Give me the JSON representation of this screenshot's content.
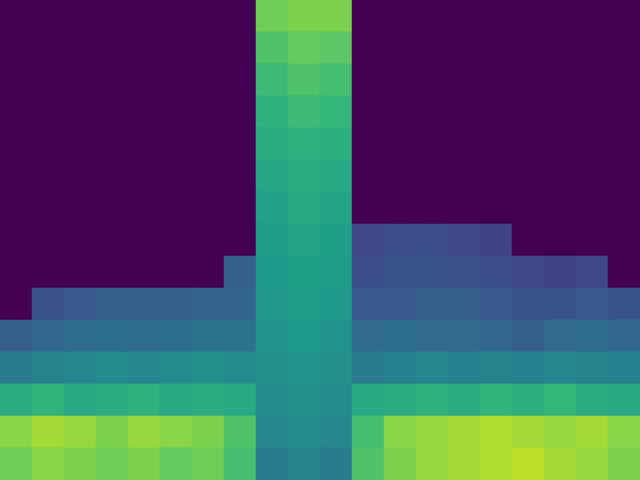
{
  "chart_data": {
    "type": "heatmap",
    "tick_labels": false,
    "color_range": [
      0,
      1
    ],
    "cells": [
      [
        0,
        0,
        0,
        0,
        0,
        0,
        0,
        0,
        0.78,
        0.8,
        0.8,
        0,
        0,
        0,
        0,
        0,
        0,
        0,
        0,
        0
      ],
      [
        0,
        0,
        0,
        0,
        0,
        0,
        0,
        0,
        0.72,
        0.76,
        0.74,
        0,
        0,
        0,
        0,
        0,
        0,
        0,
        0,
        0
      ],
      [
        0,
        0,
        0,
        0,
        0,
        0,
        0,
        0,
        0.68,
        0.72,
        0.7,
        0,
        0,
        0,
        0,
        0,
        0,
        0,
        0,
        0
      ],
      [
        0,
        0,
        0,
        0,
        0,
        0,
        0,
        0,
        0.64,
        0.68,
        0.66,
        0,
        0,
        0,
        0,
        0,
        0,
        0,
        0,
        0
      ],
      [
        0,
        0,
        0,
        0,
        0,
        0,
        0,
        0,
        0.61,
        0.64,
        0.63,
        0,
        0,
        0,
        0,
        0,
        0,
        0,
        0,
        0
      ],
      [
        0,
        0,
        0,
        0,
        0,
        0,
        0,
        0,
        0.59,
        0.62,
        0.6,
        0,
        0,
        0,
        0,
        0,
        0,
        0,
        0,
        0
      ],
      [
        0,
        0,
        0,
        0,
        0,
        0,
        0,
        0,
        0.57,
        0.6,
        0.58,
        0,
        0,
        0,
        0,
        0,
        0,
        0,
        0,
        0
      ],
      [
        0,
        0,
        0,
        0,
        0,
        0,
        0,
        0,
        0.55,
        0.58,
        0.56,
        0.22,
        0.24,
        0.24,
        0.22,
        0.2,
        0,
        0,
        0,
        0
      ],
      [
        0,
        0,
        0,
        0,
        0,
        0,
        0,
        0.3,
        0.54,
        0.56,
        0.55,
        0.24,
        0.26,
        0.26,
        0.25,
        0.24,
        0.22,
        0.2,
        0.22,
        0
      ],
      [
        0,
        0.25,
        0.28,
        0.3,
        0.3,
        0.3,
        0.32,
        0.32,
        0.53,
        0.55,
        0.54,
        0.28,
        0.28,
        0.3,
        0.3,
        0.28,
        0.26,
        0.26,
        0.28,
        0.26
      ],
      [
        0.3,
        0.33,
        0.35,
        0.36,
        0.35,
        0.36,
        0.38,
        0.38,
        0.52,
        0.54,
        0.52,
        0.34,
        0.36,
        0.34,
        0.34,
        0.33,
        0.3,
        0.34,
        0.35,
        0.33
      ],
      [
        0.42,
        0.45,
        0.46,
        0.48,
        0.46,
        0.48,
        0.5,
        0.48,
        0.5,
        0.52,
        0.5,
        0.42,
        0.44,
        0.46,
        0.44,
        0.45,
        0.44,
        0.46,
        0.45,
        0.44
      ],
      [
        0.62,
        0.65,
        0.6,
        0.62,
        0.64,
        0.6,
        0.62,
        0.6,
        0.48,
        0.5,
        0.48,
        0.6,
        0.62,
        0.64,
        0.62,
        0.65,
        0.63,
        0.66,
        0.62,
        0.6
      ],
      [
        0.82,
        0.86,
        0.84,
        0.8,
        0.84,
        0.82,
        0.8,
        0.72,
        0.46,
        0.48,
        0.46,
        0.7,
        0.82,
        0.84,
        0.86,
        0.88,
        0.86,
        0.84,
        0.86,
        0.82
      ],
      [
        0.78,
        0.82,
        0.8,
        0.78,
        0.8,
        0.76,
        0.78,
        0.7,
        0.42,
        0.45,
        0.42,
        0.72,
        0.8,
        0.84,
        0.86,
        0.88,
        0.9,
        0.86,
        0.84,
        0.8
      ]
    ]
  }
}
